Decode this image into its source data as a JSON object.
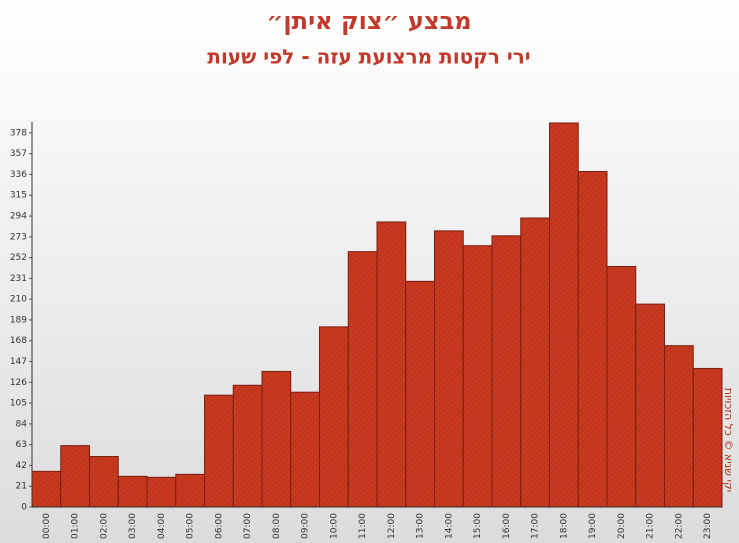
{
  "chart_data": {
    "type": "bar",
    "title": "מבצע ״צוק איתן״",
    "subtitle": "ירי רקטות מרצועת עזה - לפי שעות",
    "credit": "יקי שגיא © כל הזכויות",
    "categories": [
      "00:00",
      "01:00",
      "02:00",
      "03:00",
      "04:00",
      "05:00",
      "06:00",
      "07:00",
      "08:00",
      "09:00",
      "10:00",
      "11:00",
      "12:00",
      "13:00",
      "14:00",
      "15:00",
      "16:00",
      "17:00",
      "18:00",
      "19:00",
      "20:00",
      "21:00",
      "22:00",
      "23:00"
    ],
    "values": [
      36,
      62,
      51,
      31,
      30,
      33,
      113,
      123,
      137,
      116,
      182,
      258,
      288,
      228,
      279,
      264,
      274,
      292,
      388,
      339,
      243,
      205,
      163,
      140
    ],
    "color": "#c8391f",
    "ylim": [
      0,
      389
    ],
    "yticks": [
      0,
      21,
      42,
      63,
      84,
      105,
      126,
      147,
      168,
      189,
      210,
      231,
      252,
      273,
      294,
      315,
      336,
      357,
      378
    ]
  }
}
